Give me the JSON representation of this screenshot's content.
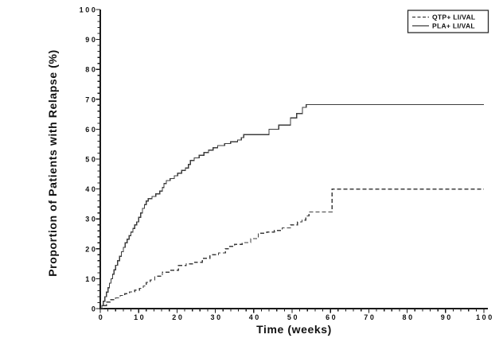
{
  "page": {
    "background": "#ffffff"
  },
  "chart_data": {
    "type": "line",
    "subtype": "step",
    "title": "",
    "xlabel": "Time (weeks)",
    "ylabel": "Proportion of Patients with Relapse (%)",
    "xlim": [
      0,
      100
    ],
    "ylim": [
      0,
      100
    ],
    "x_major_tick_step": 10,
    "x_minor_tick_step": 2,
    "y_major_tick_step": 10,
    "y_minor_tick_step": 2,
    "x_tick_labels": [
      "0",
      "10",
      "20",
      "30",
      "40",
      "50",
      "60",
      "70",
      "80",
      "90",
      "100"
    ],
    "y_tick_labels": [
      "0",
      "10",
      "20",
      "30",
      "40",
      "50",
      "60",
      "70",
      "80",
      "90",
      "100"
    ],
    "grid": "off",
    "legend_position": "top-right",
    "axis_color": "#1a1a1a",
    "curve_color": "#3d3d3d",
    "series": [
      {
        "name": "QTP+ LI/VAL",
        "line_style": "dashed",
        "points": [
          [
            0,
            0
          ],
          [
            0.8,
            1
          ],
          [
            1.6,
            2.2
          ],
          [
            2.6,
            3
          ],
          [
            4,
            3.6
          ],
          [
            5.2,
            4.4
          ],
          [
            6.4,
            5
          ],
          [
            7.6,
            5.6
          ],
          [
            9,
            6.2
          ],
          [
            10.2,
            6.8
          ],
          [
            11.2,
            7.6
          ],
          [
            12,
            8.8
          ],
          [
            13,
            9.6
          ],
          [
            14.2,
            10.8
          ],
          [
            16.2,
            12.2
          ],
          [
            18.4,
            12.8
          ],
          [
            20.4,
            14.4
          ],
          [
            22.4,
            15
          ],
          [
            24.6,
            15.5
          ],
          [
            26.6,
            16.8
          ],
          [
            28.6,
            18
          ],
          [
            30.8,
            18.6
          ],
          [
            32.6,
            20
          ],
          [
            33.4,
            20.8
          ],
          [
            35,
            21.5
          ],
          [
            37,
            22.1
          ],
          [
            39.2,
            23.4
          ],
          [
            41.2,
            25.2
          ],
          [
            43.4,
            25.6
          ],
          [
            45.4,
            26.1
          ],
          [
            47.4,
            27
          ],
          [
            49.6,
            28
          ],
          [
            51.4,
            29
          ],
          [
            52.6,
            29.6
          ],
          [
            53.6,
            31
          ],
          [
            54.4,
            32.3
          ],
          [
            60.4,
            40
          ],
          [
            100,
            40
          ]
        ]
      },
      {
        "name": "PLA+ LI/VAL",
        "line_style": "solid",
        "points": [
          [
            0,
            0
          ],
          [
            0.4,
            1
          ],
          [
            0.8,
            2.5
          ],
          [
            1.2,
            4
          ],
          [
            1.6,
            5.5
          ],
          [
            2,
            7
          ],
          [
            2.4,
            8.5
          ],
          [
            2.8,
            10
          ],
          [
            3.2,
            11.5
          ],
          [
            3.6,
            13
          ],
          [
            4,
            14.5
          ],
          [
            4.5,
            16
          ],
          [
            5,
            17.5
          ],
          [
            5.5,
            19
          ],
          [
            6,
            20.5
          ],
          [
            6.5,
            22
          ],
          [
            7,
            23.2
          ],
          [
            7.5,
            24.4
          ],
          [
            8,
            25.6
          ],
          [
            8.5,
            26.8
          ],
          [
            9,
            28
          ],
          [
            9.5,
            29
          ],
          [
            10,
            30.5
          ],
          [
            10.5,
            32
          ],
          [
            11,
            33.5
          ],
          [
            11.5,
            34.8
          ],
          [
            12,
            36
          ],
          [
            12.5,
            36.8
          ],
          [
            13.5,
            37.5
          ],
          [
            14.5,
            38.4
          ],
          [
            15.5,
            39.3
          ],
          [
            16.2,
            40.5
          ],
          [
            16.6,
            41.8
          ],
          [
            17.2,
            42.8
          ],
          [
            18.2,
            43.5
          ],
          [
            19.3,
            44.4
          ],
          [
            20.2,
            45.3
          ],
          [
            21.2,
            46.2
          ],
          [
            22.2,
            47
          ],
          [
            23,
            48.2
          ],
          [
            23.5,
            49.5
          ],
          [
            24.5,
            50.4
          ],
          [
            25.8,
            51.3
          ],
          [
            27,
            52.2
          ],
          [
            28.2,
            53
          ],
          [
            29.4,
            53.8
          ],
          [
            30.6,
            54.5
          ],
          [
            32.4,
            55.2
          ],
          [
            34,
            55.8
          ],
          [
            35.8,
            56.4
          ],
          [
            36.8,
            57.2
          ],
          [
            37.4,
            58.2
          ],
          [
            44,
            60
          ],
          [
            46.5,
            61.4
          ],
          [
            49.6,
            63.8
          ],
          [
            51.2,
            65.2
          ],
          [
            52.7,
            67.3
          ],
          [
            53.7,
            68.2
          ],
          [
            100,
            68.2
          ]
        ]
      }
    ]
  }
}
